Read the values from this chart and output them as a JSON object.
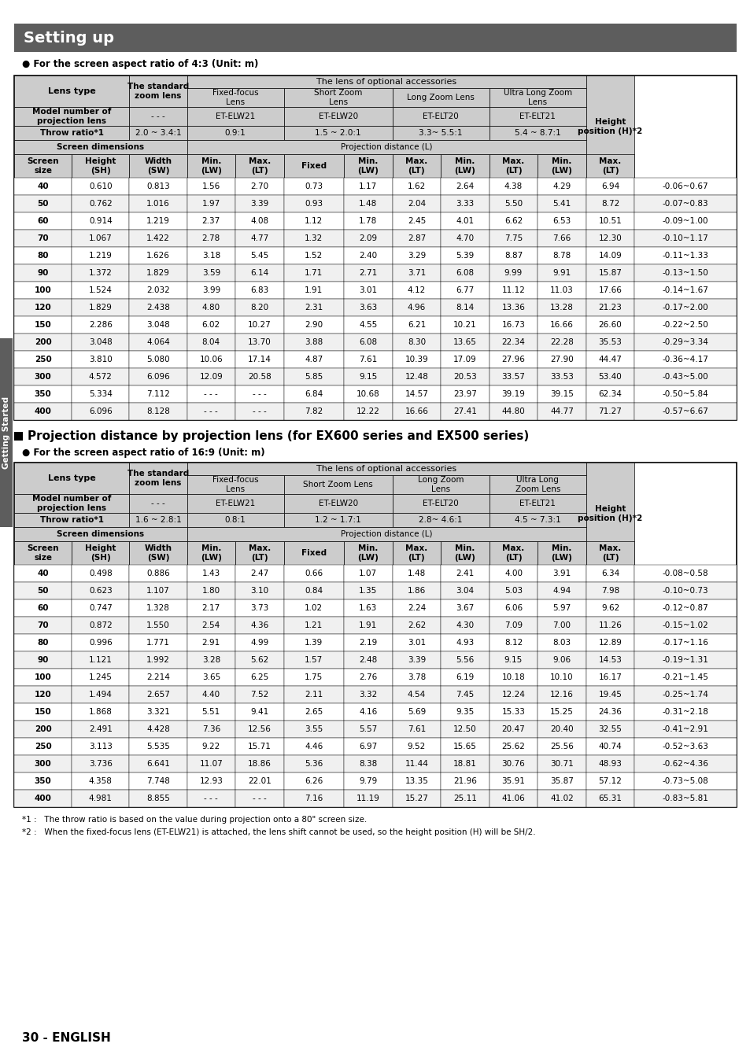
{
  "title": "Setting up",
  "title_bg": "#5d5d5d",
  "title_color": "#ffffff",
  "section1_label": "● For the screen aspect ratio of 4:3 (Unit: m)",
  "section2_title": "Projection distance by projection lens (for EX600 series and EX500 series)",
  "section2_label": "● For the screen aspect ratio of 16:9 (Unit: m)",
  "sidebar_text": "Getting Started",
  "footer_text1": "*1 :   The throw ratio is based on the value during projection onto a 80\" screen size.",
  "footer_text2": "*2 :   When the fixed-focus lens (ET-ELW21) is attached, the lens shift cannot be used, so the height position (H) will be SH/2.",
  "page_label": "30 - ENGLISH",
  "gray_bg": "#cccccc",
  "white_bg": "#ffffff",
  "alt_bg": "#f0f0f0",
  "table1_data": [
    [
      "40",
      "0.610",
      "0.813",
      "1.56",
      "2.70",
      "0.73",
      "1.17",
      "1.62",
      "2.64",
      "4.38",
      "4.29",
      "6.94",
      "-0.06~0.67"
    ],
    [
      "50",
      "0.762",
      "1.016",
      "1.97",
      "3.39",
      "0.93",
      "1.48",
      "2.04",
      "3.33",
      "5.50",
      "5.41",
      "8.72",
      "-0.07~0.83"
    ],
    [
      "60",
      "0.914",
      "1.219",
      "2.37",
      "4.08",
      "1.12",
      "1.78",
      "2.45",
      "4.01",
      "6.62",
      "6.53",
      "10.51",
      "-0.09~1.00"
    ],
    [
      "70",
      "1.067",
      "1.422",
      "2.78",
      "4.77",
      "1.32",
      "2.09",
      "2.87",
      "4.70",
      "7.75",
      "7.66",
      "12.30",
      "-0.10~1.17"
    ],
    [
      "80",
      "1.219",
      "1.626",
      "3.18",
      "5.45",
      "1.52",
      "2.40",
      "3.29",
      "5.39",
      "8.87",
      "8.78",
      "14.09",
      "-0.11~1.33"
    ],
    [
      "90",
      "1.372",
      "1.829",
      "3.59",
      "6.14",
      "1.71",
      "2.71",
      "3.71",
      "6.08",
      "9.99",
      "9.91",
      "15.87",
      "-0.13~1.50"
    ],
    [
      "100",
      "1.524",
      "2.032",
      "3.99",
      "6.83",
      "1.91",
      "3.01",
      "4.12",
      "6.77",
      "11.12",
      "11.03",
      "17.66",
      "-0.14~1.67"
    ],
    [
      "120",
      "1.829",
      "2.438",
      "4.80",
      "8.20",
      "2.31",
      "3.63",
      "4.96",
      "8.14",
      "13.36",
      "13.28",
      "21.23",
      "-0.17~2.00"
    ],
    [
      "150",
      "2.286",
      "3.048",
      "6.02",
      "10.27",
      "2.90",
      "4.55",
      "6.21",
      "10.21",
      "16.73",
      "16.66",
      "26.60",
      "-0.22~2.50"
    ],
    [
      "200",
      "3.048",
      "4.064",
      "8.04",
      "13.70",
      "3.88",
      "6.08",
      "8.30",
      "13.65",
      "22.34",
      "22.28",
      "35.53",
      "-0.29~3.34"
    ],
    [
      "250",
      "3.810",
      "5.080",
      "10.06",
      "17.14",
      "4.87",
      "7.61",
      "10.39",
      "17.09",
      "27.96",
      "27.90",
      "44.47",
      "-0.36~4.17"
    ],
    [
      "300",
      "4.572",
      "6.096",
      "12.09",
      "20.58",
      "5.85",
      "9.15",
      "12.48",
      "20.53",
      "33.57",
      "33.53",
      "53.40",
      "-0.43~5.00"
    ],
    [
      "350",
      "5.334",
      "7.112",
      "- - -",
      "- - -",
      "6.84",
      "10.68",
      "14.57",
      "23.97",
      "39.19",
      "39.15",
      "62.34",
      "-0.50~5.84"
    ],
    [
      "400",
      "6.096",
      "8.128",
      "- - -",
      "- - -",
      "7.82",
      "12.22",
      "16.66",
      "27.41",
      "44.80",
      "44.77",
      "71.27",
      "-0.57~6.67"
    ]
  ],
  "table2_data": [
    [
      "40",
      "0.498",
      "0.886",
      "1.43",
      "2.47",
      "0.66",
      "1.07",
      "1.48",
      "2.41",
      "4.00",
      "3.91",
      "6.34",
      "-0.08~0.58"
    ],
    [
      "50",
      "0.623",
      "1.107",
      "1.80",
      "3.10",
      "0.84",
      "1.35",
      "1.86",
      "3.04",
      "5.03",
      "4.94",
      "7.98",
      "-0.10~0.73"
    ],
    [
      "60",
      "0.747",
      "1.328",
      "2.17",
      "3.73",
      "1.02",
      "1.63",
      "2.24",
      "3.67",
      "6.06",
      "5.97",
      "9.62",
      "-0.12~0.87"
    ],
    [
      "70",
      "0.872",
      "1.550",
      "2.54",
      "4.36",
      "1.21",
      "1.91",
      "2.62",
      "4.30",
      "7.09",
      "7.00",
      "11.26",
      "-0.15~1.02"
    ],
    [
      "80",
      "0.996",
      "1.771",
      "2.91",
      "4.99",
      "1.39",
      "2.19",
      "3.01",
      "4.93",
      "8.12",
      "8.03",
      "12.89",
      "-0.17~1.16"
    ],
    [
      "90",
      "1.121",
      "1.992",
      "3.28",
      "5.62",
      "1.57",
      "2.48",
      "3.39",
      "5.56",
      "9.15",
      "9.06",
      "14.53",
      "-0.19~1.31"
    ],
    [
      "100",
      "1.245",
      "2.214",
      "3.65",
      "6.25",
      "1.75",
      "2.76",
      "3.78",
      "6.19",
      "10.18",
      "10.10",
      "16.17",
      "-0.21~1.45"
    ],
    [
      "120",
      "1.494",
      "2.657",
      "4.40",
      "7.52",
      "2.11",
      "3.32",
      "4.54",
      "7.45",
      "12.24",
      "12.16",
      "19.45",
      "-0.25~1.74"
    ],
    [
      "150",
      "1.868",
      "3.321",
      "5.51",
      "9.41",
      "2.65",
      "4.16",
      "5.69",
      "9.35",
      "15.33",
      "15.25",
      "24.36",
      "-0.31~2.18"
    ],
    [
      "200",
      "2.491",
      "4.428",
      "7.36",
      "12.56",
      "3.55",
      "5.57",
      "7.61",
      "12.50",
      "20.47",
      "20.40",
      "32.55",
      "-0.41~2.91"
    ],
    [
      "250",
      "3.113",
      "5.535",
      "9.22",
      "15.71",
      "4.46",
      "6.97",
      "9.52",
      "15.65",
      "25.62",
      "25.56",
      "40.74",
      "-0.52~3.63"
    ],
    [
      "300",
      "3.736",
      "6.641",
      "11.07",
      "18.86",
      "5.36",
      "8.38",
      "11.44",
      "18.81",
      "30.76",
      "30.71",
      "48.93",
      "-0.62~4.36"
    ],
    [
      "350",
      "4.358",
      "7.748",
      "12.93",
      "22.01",
      "6.26",
      "9.79",
      "13.35",
      "21.96",
      "35.91",
      "35.87",
      "57.12",
      "-0.73~5.08"
    ],
    [
      "400",
      "4.981",
      "8.855",
      "- - -",
      "- - -",
      "7.16",
      "11.19",
      "15.27",
      "25.11",
      "41.06",
      "41.02",
      "65.31",
      "-0.83~5.81"
    ]
  ]
}
